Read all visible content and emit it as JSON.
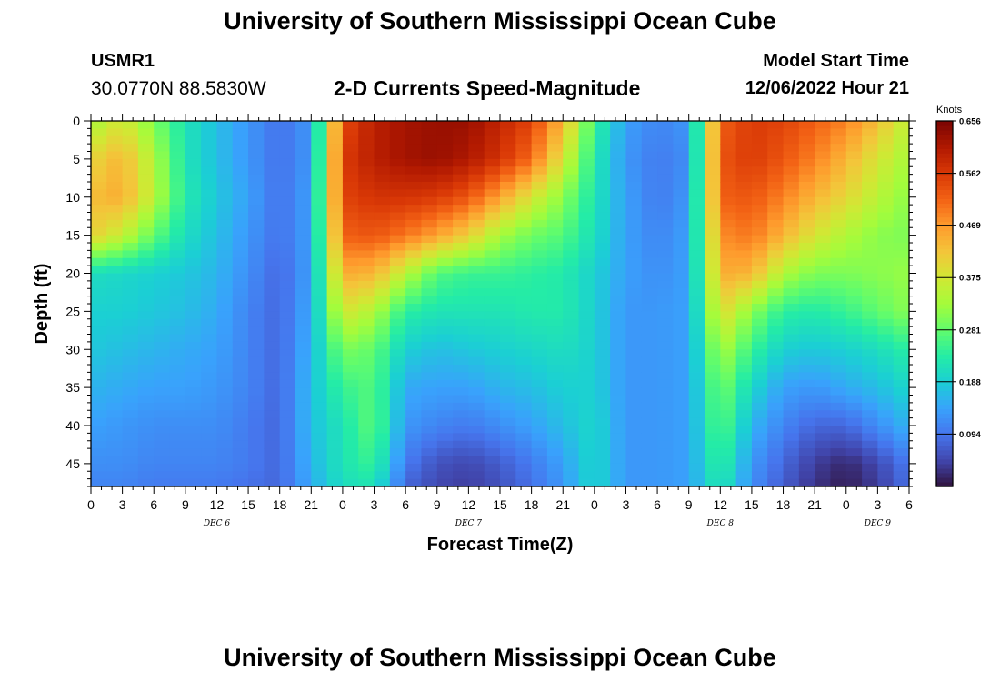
{
  "page": {
    "title": "University of Southern Mississippi Ocean Cube",
    "footer_title": "University of Southern Mississippi Ocean Cube",
    "station": "USMR1",
    "coords": "30.0770N  88.5830W",
    "subtitle": "2-D Currents Speed-Magnitude",
    "start_label": "Model Start Time",
    "start_value": "12/06/2022 Hour 21"
  },
  "chart_data": {
    "type": "heatmap",
    "title": "2-D Currents Speed-Magnitude",
    "xlabel": "Forecast Time(Z)",
    "ylabel": "Depth (ft)",
    "units": "Knots",
    "x_ticks": [
      "0",
      "3",
      "6",
      "9",
      "12",
      "15",
      "18",
      "21",
      "0",
      "3",
      "6",
      "9",
      "12",
      "15",
      "18",
      "21",
      "0",
      "3",
      "6",
      "9",
      "12",
      "15",
      "18",
      "21",
      "0",
      "3",
      "6"
    ],
    "day_labels": [
      {
        "label": "DEC 6",
        "hour": 12
      },
      {
        "label": "DEC 7",
        "hour": 36
      },
      {
        "label": "DEC 8",
        "hour": 60
      },
      {
        "label": "DEC 9",
        "hour": 75
      }
    ],
    "xlim_hours": [
      0,
      78
    ],
    "y_ticks": [
      0,
      5,
      10,
      15,
      20,
      25,
      30,
      35,
      40,
      45
    ],
    "ylim": [
      0,
      48
    ],
    "colorbar": {
      "min": 0.0,
      "max": 0.656,
      "ticks": [
        0.656,
        0.562,
        0.469,
        0.375,
        0.281,
        0.188,
        0.094
      ],
      "colors": [
        "#30123b",
        "#4145ab",
        "#4675ed",
        "#39a2fc",
        "#1bcfd4",
        "#24eca6",
        "#61fc6c",
        "#a4fc3b",
        "#d1e834",
        "#f3c63a",
        "#fe9b2d",
        "#f36315",
        "#d93806",
        "#b11901",
        "#7a0402"
      ]
    },
    "grid_hours": [
      0,
      3,
      6,
      9,
      12,
      15,
      18,
      21,
      24,
      27,
      30,
      33,
      36,
      39,
      42,
      45,
      48,
      51,
      54,
      57,
      60,
      63,
      66,
      69,
      72,
      75,
      78
    ],
    "grid_depths": [
      0,
      5,
      10,
      15,
      20,
      25,
      30,
      35,
      40,
      45,
      48
    ],
    "speed_knots": [
      [
        0.33,
        0.38,
        0.3,
        0.22,
        0.17,
        0.13,
        0.09,
        0.13,
        0.54,
        0.6,
        0.62,
        0.63,
        0.63,
        0.59,
        0.55,
        0.44,
        0.25,
        0.14,
        0.11,
        0.13,
        0.52,
        0.56,
        0.55,
        0.52,
        0.49,
        0.43,
        0.35
      ],
      [
        0.4,
        0.44,
        0.34,
        0.22,
        0.17,
        0.13,
        0.09,
        0.13,
        0.56,
        0.6,
        0.62,
        0.63,
        0.61,
        0.57,
        0.51,
        0.38,
        0.23,
        0.13,
        0.1,
        0.12,
        0.53,
        0.56,
        0.53,
        0.49,
        0.44,
        0.38,
        0.33
      ],
      [
        0.43,
        0.45,
        0.35,
        0.23,
        0.18,
        0.14,
        0.09,
        0.14,
        0.55,
        0.57,
        0.57,
        0.56,
        0.53,
        0.46,
        0.38,
        0.31,
        0.22,
        0.14,
        0.1,
        0.13,
        0.52,
        0.53,
        0.49,
        0.44,
        0.4,
        0.35,
        0.31
      ],
      [
        0.41,
        0.36,
        0.28,
        0.21,
        0.17,
        0.13,
        0.09,
        0.14,
        0.52,
        0.53,
        0.5,
        0.46,
        0.41,
        0.33,
        0.29,
        0.27,
        0.21,
        0.14,
        0.11,
        0.14,
        0.48,
        0.5,
        0.44,
        0.38,
        0.34,
        0.31,
        0.3
      ],
      [
        0.21,
        0.2,
        0.19,
        0.18,
        0.16,
        0.12,
        0.08,
        0.14,
        0.45,
        0.44,
        0.35,
        0.27,
        0.25,
        0.25,
        0.24,
        0.23,
        0.19,
        0.14,
        0.12,
        0.14,
        0.45,
        0.44,
        0.34,
        0.3,
        0.3,
        0.31,
        0.32
      ],
      [
        0.19,
        0.19,
        0.18,
        0.17,
        0.15,
        0.11,
        0.08,
        0.15,
        0.38,
        0.34,
        0.24,
        0.22,
        0.22,
        0.22,
        0.23,
        0.23,
        0.19,
        0.13,
        0.13,
        0.14,
        0.4,
        0.31,
        0.24,
        0.23,
        0.25,
        0.28,
        0.31
      ],
      [
        0.18,
        0.17,
        0.16,
        0.15,
        0.14,
        0.11,
        0.08,
        0.16,
        0.3,
        0.28,
        0.19,
        0.17,
        0.18,
        0.19,
        0.2,
        0.21,
        0.19,
        0.13,
        0.13,
        0.14,
        0.34,
        0.25,
        0.19,
        0.18,
        0.19,
        0.21,
        0.24
      ],
      [
        0.16,
        0.15,
        0.14,
        0.14,
        0.13,
        0.11,
        0.08,
        0.17,
        0.25,
        0.27,
        0.15,
        0.14,
        0.14,
        0.16,
        0.17,
        0.19,
        0.19,
        0.13,
        0.13,
        0.14,
        0.3,
        0.2,
        0.14,
        0.13,
        0.15,
        0.17,
        0.2
      ],
      [
        0.14,
        0.13,
        0.12,
        0.12,
        0.12,
        0.1,
        0.08,
        0.17,
        0.22,
        0.28,
        0.13,
        0.11,
        0.1,
        0.12,
        0.14,
        0.17,
        0.2,
        0.13,
        0.13,
        0.14,
        0.28,
        0.16,
        0.11,
        0.08,
        0.08,
        0.12,
        0.16
      ],
      [
        0.12,
        0.12,
        0.11,
        0.11,
        0.11,
        0.1,
        0.08,
        0.16,
        0.22,
        0.25,
        0.1,
        0.06,
        0.05,
        0.07,
        0.1,
        0.14,
        0.2,
        0.13,
        0.13,
        0.14,
        0.25,
        0.13,
        0.08,
        0.04,
        0.02,
        0.05,
        0.1
      ],
      [
        0.11,
        0.11,
        0.1,
        0.1,
        0.1,
        0.09,
        0.08,
        0.15,
        0.21,
        0.22,
        0.08,
        0.05,
        0.04,
        0.06,
        0.09,
        0.13,
        0.2,
        0.13,
        0.13,
        0.14,
        0.23,
        0.12,
        0.07,
        0.03,
        0.01,
        0.04,
        0.09
      ]
    ]
  }
}
